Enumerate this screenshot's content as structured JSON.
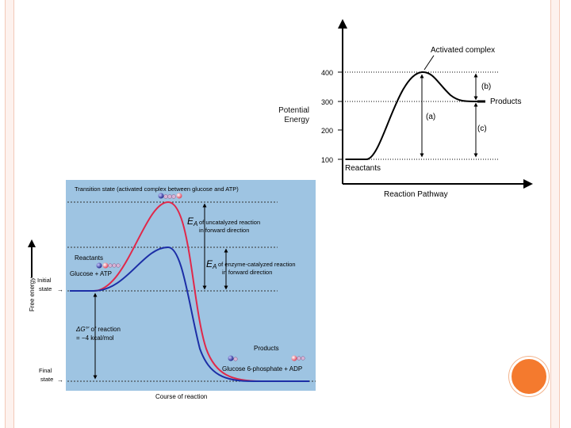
{
  "slide": {
    "accent_color": "#f47a2e",
    "frame_color": "#f3c9b8"
  },
  "top_diagram": {
    "y_label": [
      "Potential",
      "Energy"
    ],
    "x_label": "Reaction Pathway",
    "ticks": [
      "400",
      "300",
      "200",
      "100"
    ],
    "activated_complex": "Activated complex",
    "products": "Products",
    "reactants": "Reactants",
    "label_a": "(a)",
    "label_b": "(b)",
    "label_c": "(c)"
  },
  "bottom_diagram": {
    "background_color": "#9ec4e2",
    "uncatalyzed_color": "#e0284a",
    "catalyzed_color": "#1c2ea6",
    "transition_state": "Transition state (activated complex between glucose and ATP)",
    "ea_symbol": "E",
    "ea_sub": "A",
    "ea_uncatalyzed": [
      "of uncatalyzed reaction",
      "in forward direction"
    ],
    "ea_catalyzed": [
      "of enzyme-catalyzed reaction",
      "in forward direction"
    ],
    "reactants_title": "Reactants",
    "reactants": "Glucose + ATP",
    "dg_symbol": "ΔG°′",
    "dg_line1": "of reaction",
    "dg_line2": "= −4 kcal/mol",
    "products_title": "Products",
    "products": "Glucose 6-phosphate + ADP",
    "free_energy": "Free energy",
    "initial_state": [
      "Initial",
      "state"
    ],
    "final_state": [
      "Final",
      "state"
    ],
    "arrow": "→",
    "course": "Course of reaction"
  }
}
